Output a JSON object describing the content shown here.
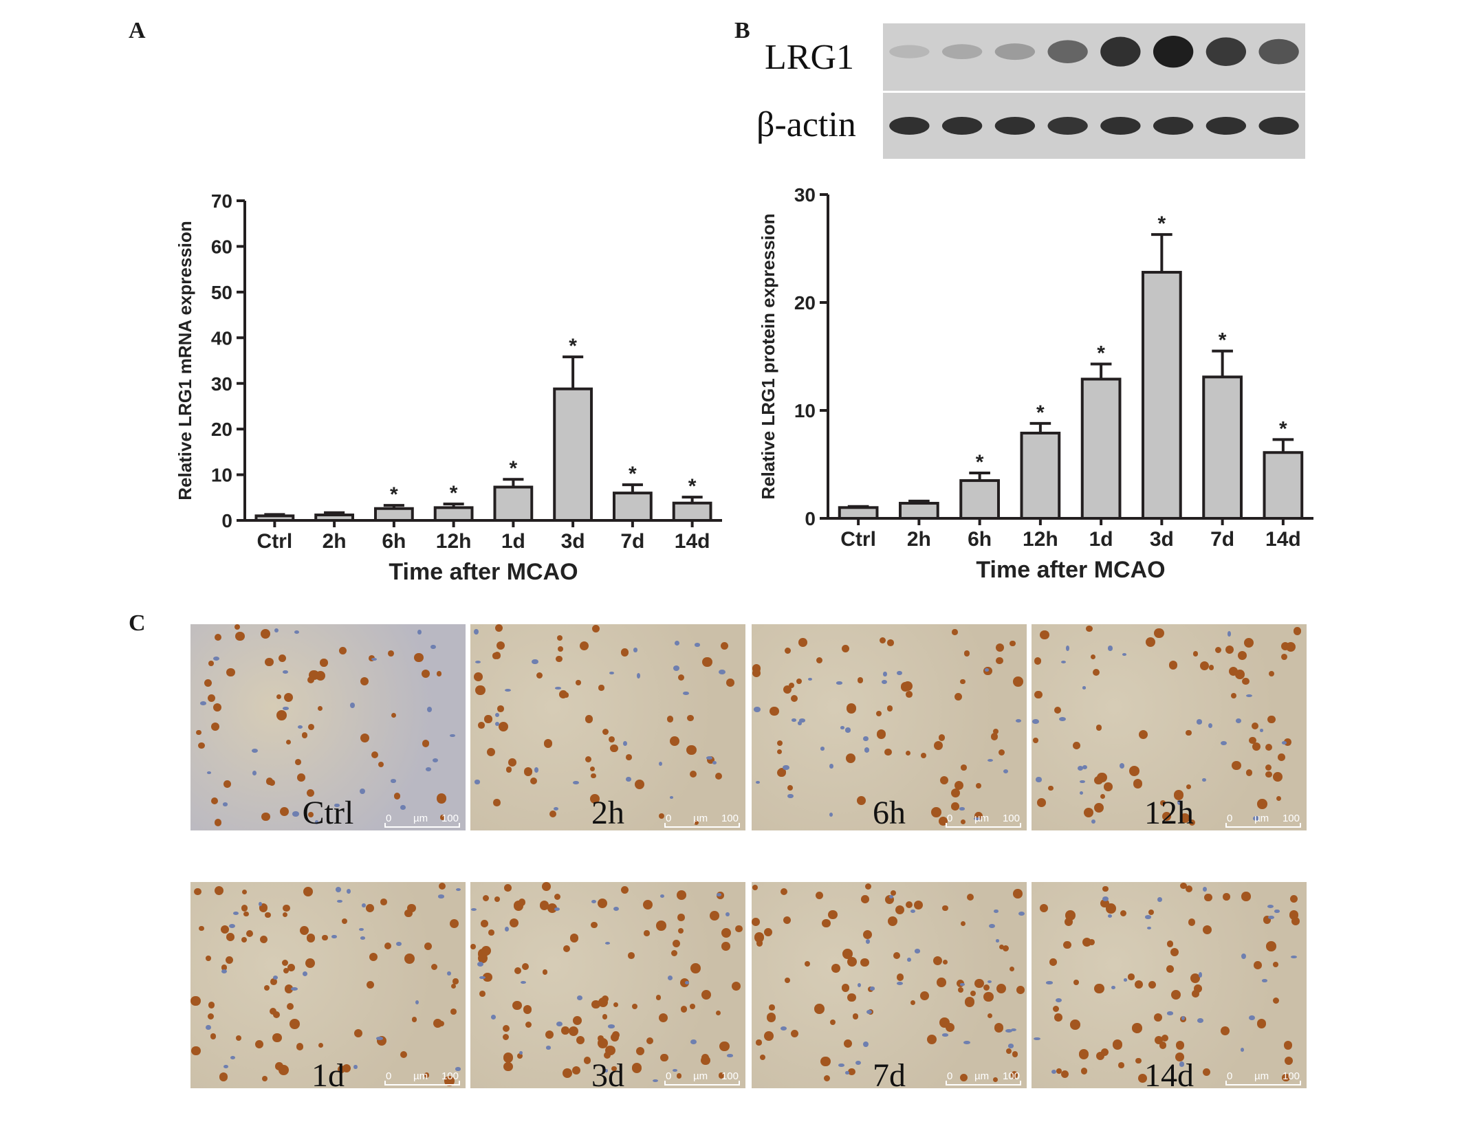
{
  "panels": {
    "a": "A",
    "b": "B",
    "c": "C"
  },
  "blot": {
    "rows": [
      {
        "name": "LRG1",
        "intensities": [
          0.1,
          0.18,
          0.25,
          0.55,
          0.85,
          0.95,
          0.8,
          0.65
        ]
      },
      {
        "name": "β-actin",
        "intensities": [
          0.85,
          0.85,
          0.85,
          0.82,
          0.85,
          0.85,
          0.85,
          0.85
        ]
      }
    ]
  },
  "chart_data": [
    {
      "type": "bar",
      "categories": [
        "Ctrl",
        "2h",
        "6h",
        "12h",
        "1d",
        "3d",
        "7d",
        "14d"
      ],
      "values": [
        1.0,
        1.2,
        2.6,
        2.8,
        7.3,
        28.8,
        6.0,
        3.8
      ],
      "errors": [
        0.3,
        0.5,
        0.7,
        0.8,
        1.7,
        7.0,
        1.8,
        1.3
      ],
      "significance": [
        "",
        "",
        "*",
        "*",
        "*",
        "*",
        "*",
        "*"
      ],
      "xlabel": "Time after MCAO",
      "ylabel": "Relative LRG1 mRNA expression",
      "ylim": [
        0,
        70
      ],
      "yticks": [
        "0",
        "10",
        "20",
        "30",
        "40",
        "50",
        "60",
        "70"
      ],
      "bar_color": "#c4c4c4"
    },
    {
      "type": "bar",
      "categories": [
        "Ctrl",
        "2h",
        "6h",
        "12h",
        "1d",
        "3d",
        "7d",
        "14d"
      ],
      "values": [
        1.0,
        1.4,
        3.5,
        7.9,
        12.9,
        22.8,
        13.1,
        6.1
      ],
      "errors": [
        0.1,
        0.2,
        0.7,
        0.9,
        1.4,
        3.5,
        2.4,
        1.2
      ],
      "significance": [
        "",
        "",
        "*",
        "*",
        "*",
        "*",
        "*",
        "*"
      ],
      "xlabel": "Time after MCAO",
      "ylabel": "Relative LRG1 protein  expression",
      "ylim": [
        0,
        30
      ],
      "yticks": [
        "0",
        "10",
        "20",
        "30"
      ],
      "bar_color": "#c4c4c4"
    }
  ],
  "micrographs": {
    "scalebar": {
      "start": "0",
      "unit": "µm",
      "end": "100"
    },
    "rows": [
      [
        {
          "label": "Ctrl",
          "density": 0.45
        },
        {
          "label": "2h",
          "density": 0.45
        },
        {
          "label": "6h",
          "density": 0.5
        },
        {
          "label": "12h",
          "density": 0.6
        }
      ],
      [
        {
          "label": "1d",
          "density": 0.75
        },
        {
          "label": "3d",
          "density": 0.95
        },
        {
          "label": "7d",
          "density": 0.8
        },
        {
          "label": "14d",
          "density": 0.65
        }
      ]
    ]
  }
}
